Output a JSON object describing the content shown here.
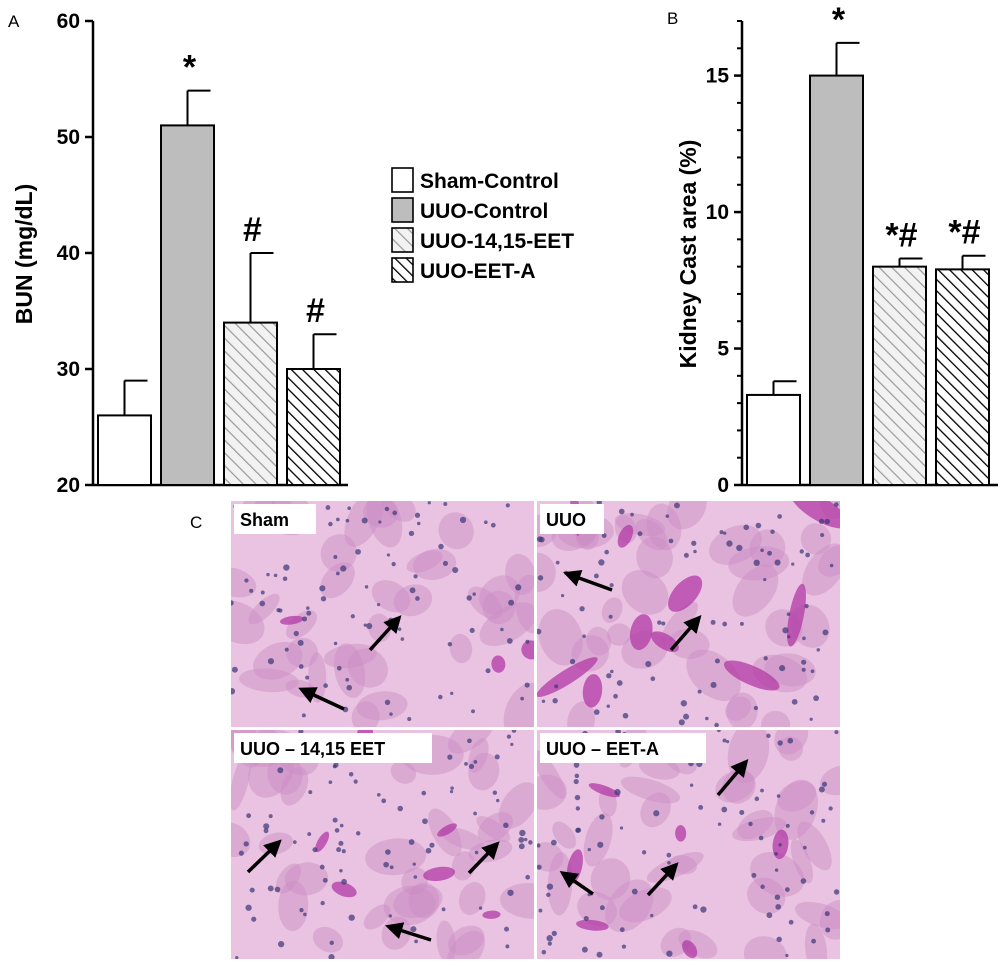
{
  "panel_labels": {
    "a": "A",
    "b": "B",
    "c": "C"
  },
  "colors": {
    "sham": "#ffffff",
    "uuo_control": "#bdbdbd",
    "eet_fill": "#f2f2f2",
    "eet_hatch": "#9a9a9a",
    "eeta_fill": "#ffffff",
    "eeta_hatch": "#000000",
    "tissue_bg": "#e9c3e1",
    "tissue_cell": "#c98bc4",
    "tissue_cast": "#b23aa6",
    "tissue_nuclei": "#3a3478"
  },
  "chart_data": [
    {
      "type": "bar",
      "panel": "A",
      "ylabel": "BUN (mg/dL)",
      "ylim": [
        20,
        60
      ],
      "yticks": [
        "20",
        "30",
        "40",
        "50",
        "60"
      ],
      "categories": [
        "Sham-Control",
        "UUO-Control",
        "UUO-14,15-EET",
        "UUO-EET-A"
      ],
      "values": [
        26,
        51,
        34,
        30
      ],
      "errors": [
        3,
        3,
        6,
        3
      ],
      "annotations": [
        "",
        "*",
        "#",
        "#"
      ]
    },
    {
      "type": "bar",
      "panel": "B",
      "ylabel": "Kidney Cast area (%)",
      "ylim": [
        0,
        17
      ],
      "yticks": [
        "0",
        "5",
        "10",
        "15"
      ],
      "categories": [
        "Sham-Control",
        "UUO-Control",
        "UUO-14,15-EET",
        "UUO-EET-A"
      ],
      "values": [
        3.3,
        15.0,
        8.0,
        7.9
      ],
      "errors": [
        0.5,
        1.2,
        0.3,
        0.5
      ],
      "annotations": [
        "",
        "*",
        "*#",
        "*#"
      ]
    }
  ],
  "legend": [
    {
      "label": "Sham-Control",
      "pattern": "sham"
    },
    {
      "label": "UUO-Control",
      "pattern": "uuo"
    },
    {
      "label": "UUO-14,15-EET",
      "pattern": "eet"
    },
    {
      "label": "UUO-EET-A",
      "pattern": "eeta"
    }
  ],
  "micrographs": [
    {
      "label": "Sham",
      "icon": "arrow-icon",
      "arrow_count": 2
    },
    {
      "label": "UUO",
      "icon": "arrow-icon",
      "arrow_count": 2
    },
    {
      "label": "UUO – 14,15 EET",
      "icon": "arrow-icon",
      "arrow_count": 3
    },
    {
      "label": "UUO – EET-A",
      "icon": "arrow-icon",
      "arrow_count": 3
    }
  ]
}
